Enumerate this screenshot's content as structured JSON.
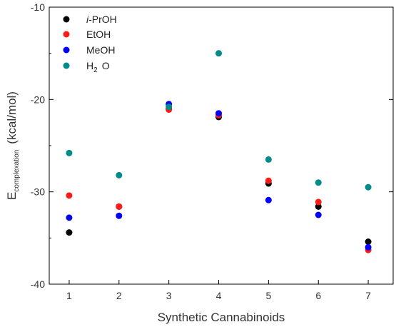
{
  "chart_data": {
    "type": "scatter",
    "title": "",
    "xlabel": "Synthetic Cannabinoids",
    "ylabel": {
      "main": "E",
      "subscript": "complexation",
      "unit": "(kcal/mol)"
    },
    "x": [
      1,
      2,
      3,
      4,
      5,
      6,
      7
    ],
    "xlim": [
      0.6,
      7.5
    ],
    "ylim": [
      -40,
      -10
    ],
    "xticks": [
      1,
      2,
      3,
      4,
      5,
      6,
      7
    ],
    "yticks": [
      -40,
      -30,
      -20,
      -10
    ],
    "grid": false,
    "legend_position": "top-left",
    "series": [
      {
        "name": "i-PrOH",
        "prefix": "i",
        "rest": "-PrOH",
        "color": "#000000",
        "values": [
          -34.4,
          -31.6,
          -21.0,
          -21.9,
          -29.1,
          -31.6,
          -35.4
        ]
      },
      {
        "name": "EtOH",
        "color": "#ff1a1a",
        "values": [
          -30.4,
          -31.6,
          -21.1,
          -21.7,
          -28.8,
          -31.1,
          -36.3
        ]
      },
      {
        "name": "MeOH",
        "color": "#0000ff",
        "values": [
          -32.8,
          -32.6,
          -20.5,
          -21.5,
          -30.9,
          -32.5,
          -36.0
        ]
      },
      {
        "name": "H2O",
        "main": "H",
        "sub": "2",
        "tail": "O",
        "color": "#008b8b",
        "values": [
          -25.8,
          -28.2,
          -20.8,
          -15.0,
          -26.5,
          -29.0,
          -29.5
        ]
      }
    ]
  }
}
